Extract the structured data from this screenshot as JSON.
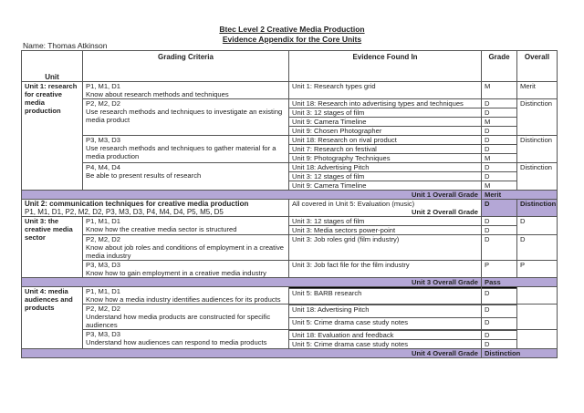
{
  "title": "Btec Level 2 Creative Media Production",
  "subtitle": "Evidence Appendix for the Core Units",
  "name": "Name: Thomas Atkinson",
  "headers": {
    "unit": "Unit",
    "criteria": "Grading Criteria",
    "evidence": "Evidence Found In",
    "grade": "Grade",
    "overall": "Overall"
  },
  "unit1": {
    "label": "Unit 1: research for creative media production",
    "criteria": [
      {
        "codes": "P1, M1, D1",
        "desc": "Know about research methods and techniques",
        "overall": "Merit",
        "evidence": [
          {
            "text": "Unit 1: Research types grid",
            "grade": "M"
          }
        ]
      },
      {
        "codes": "P2, M2, D2",
        "desc": "Use research methods and techniques to investigate an existing media product",
        "overall": "Distinction",
        "evidence": [
          {
            "text": "Unit 18: Research into advertising types and techniques",
            "grade": "D"
          },
          {
            "text": "Unit 3: 12 stages of film",
            "grade": "D"
          },
          {
            "text": "Unit 9: Camera Timeline",
            "grade": "M"
          },
          {
            "text": "Unit 9: Chosen Photographer",
            "grade": "D"
          }
        ]
      },
      {
        "codes": "P3, M3, D3",
        "desc": "Use research methods and techniques to gather material for a media production",
        "overall": "Distinction",
        "evidence": [
          {
            "text": "Unit 18: Research on rival product",
            "grade": "D"
          },
          {
            "text": "Unit 7: Research on festival",
            "grade": "D"
          },
          {
            "text": "Unit 9: Photography Techniques",
            "grade": "M"
          }
        ]
      },
      {
        "codes": "P4, M4, D4",
        "desc": "Be able to present results of research",
        "overall": "Distinction",
        "evidence": [
          {
            "text": "Unit 18: Advertising Pitch",
            "grade": "D"
          },
          {
            "text": "Unit 3: 12 stages of film",
            "grade": "D"
          },
          {
            "text": "Unit 9: Camera Timeline",
            "grade": "M"
          }
        ]
      }
    ],
    "overall_label": "Unit 1 Overall Grade",
    "overall_grade": "Merit"
  },
  "unit2": {
    "label": "Unit 2: communication  techniques for creative media production",
    "codes": "P1, M1, D1, P2, M2, D2, P3, M3, D3, P4, M4, D4, P5, M5, D5",
    "evidence": "All covered in Unit 5: Evaluation (music)",
    "overall_label": "Unit 2 Overall Grade",
    "grade": "D",
    "overall": "Distinction"
  },
  "unit3": {
    "label": "Unit 3: the creative media sector",
    "criteria": [
      {
        "codes": "P1, M1, D1",
        "desc": "Know how the creative media sector is structured",
        "overall": "D",
        "evidence": [
          {
            "text": "Unit 3: 12 stages of film",
            "grade": "D"
          },
          {
            "text": "Unit 3: Media sectors power-point",
            "grade": "D"
          }
        ]
      },
      {
        "codes": "P2, M2, D2",
        "desc": "Know about job roles and conditions of employment in a creative media industry",
        "overall": "D",
        "evidence": [
          {
            "text": "Unit 3: Job roles grid (film industry)",
            "grade": "D"
          }
        ]
      },
      {
        "codes": "P3, M3, D3",
        "desc": "Know how to gain employment in a creative media industry",
        "overall": "P",
        "evidence": [
          {
            "text": "Unit 3: Job fact file for the film industry",
            "grade": "P"
          }
        ]
      }
    ],
    "overall_label": "Unit 3 Overall Grade",
    "overall_grade": "Pass"
  },
  "unit4": {
    "label": "Unit 4: media audiences and products",
    "criteria": [
      {
        "codes": "P1, M1, D1",
        "desc": "Know how a media industry identifies audiences for its products",
        "overall": "",
        "evidence": [
          {
            "redacted": true
          },
          {
            "text": "Unit 5: BARB research",
            "grade": "D"
          }
        ]
      },
      {
        "codes": "P2, M2, D2",
        "desc": "Understand how media products are constructed for specific audiences",
        "overall": "",
        "evidence": [
          {
            "redacted": true
          },
          {
            "text": "Unit 18: Advertising Pitch",
            "grade": "D"
          },
          {
            "text": "Unit 5: Crime drama case study notes",
            "grade": "D"
          }
        ]
      },
      {
        "codes": "P3, M3, D3",
        "desc": "Understand how audiences can respond to media products",
        "overall": "",
        "evidence": [
          {
            "redacted": true
          },
          {
            "text": "Unit 18: Evaluation and feedback",
            "grade": "D"
          },
          {
            "text": "Unit 5: Crime drama case study notes",
            "grade": "D"
          }
        ]
      }
    ],
    "overall_label": "Unit 4 Overall Grade",
    "overall_grade": "Distinction"
  },
  "colors": {
    "summary_bar": "#b4a7d6",
    "redaction": "#000000"
  }
}
